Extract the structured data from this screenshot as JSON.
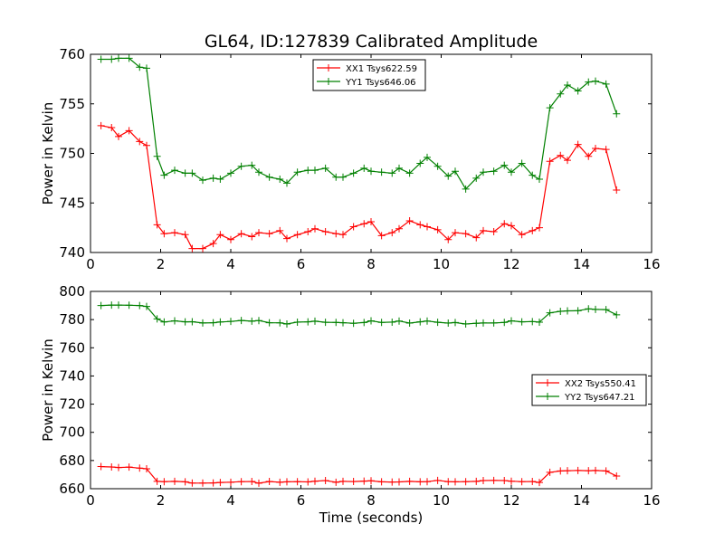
{
  "figure": {
    "title": "GL64, ID:127839 Calibrated Amplitude"
  },
  "chart_data": [
    {
      "type": "line",
      "title": "GL64, ID:127839 Calibrated Amplitude",
      "xlabel": "",
      "ylabel": "Power in Kelvin",
      "xlim": [
        0,
        16
      ],
      "ylim": [
        740,
        760
      ],
      "xticks": [
        "0",
        "2",
        "4",
        "6",
        "8",
        "10",
        "12",
        "14",
        "16"
      ],
      "yticks": [
        "740",
        "745",
        "750",
        "755",
        "760"
      ],
      "grid": false,
      "legend_position": "top-center",
      "x": [
        0.3,
        0.6,
        0.8,
        1.1,
        1.4,
        1.6,
        1.9,
        2.1,
        2.4,
        2.7,
        2.9,
        3.2,
        3.5,
        3.7,
        4.0,
        4.3,
        4.6,
        4.8,
        5.1,
        5.4,
        5.6,
        5.9,
        6.2,
        6.4,
        6.7,
        7.0,
        7.2,
        7.5,
        7.8,
        8.0,
        8.3,
        8.6,
        8.8,
        9.1,
        9.4,
        9.6,
        9.9,
        10.2,
        10.4,
        10.7,
        11.0,
        11.2,
        11.5,
        11.8,
        12.0,
        12.3,
        12.6,
        12.8,
        13.1,
        13.4,
        13.6,
        13.9,
        14.2,
        14.4,
        14.7,
        15.0
      ],
      "series": [
        {
          "name": "XX1 Tsys622.59",
          "color": "#ff0000",
          "values": [
            752.8,
            752.6,
            751.7,
            752.3,
            751.2,
            750.8,
            742.8,
            741.9,
            742.0,
            741.8,
            740.4,
            740.4,
            740.9,
            741.8,
            741.3,
            741.9,
            741.6,
            742.0,
            741.9,
            742.2,
            741.4,
            741.8,
            742.1,
            742.4,
            742.1,
            741.9,
            741.8,
            742.6,
            742.9,
            743.1,
            741.7,
            742.0,
            742.4,
            743.2,
            742.8,
            742.6,
            742.3,
            741.3,
            742.0,
            741.9,
            741.5,
            742.2,
            742.1,
            742.9,
            742.7,
            741.8,
            742.2,
            742.5,
            749.2,
            749.8,
            749.3,
            750.9,
            749.7,
            750.5,
            750.4,
            746.3
          ]
        },
        {
          "name": "YY1 Tsys646.06",
          "color": "#008000",
          "values": [
            759.5,
            759.5,
            759.6,
            759.6,
            758.7,
            758.6,
            749.7,
            747.8,
            748.3,
            748.0,
            748.0,
            747.3,
            747.5,
            747.4,
            748.0,
            748.7,
            748.8,
            748.1,
            747.6,
            747.4,
            747.0,
            748.1,
            748.3,
            748.3,
            748.5,
            747.6,
            747.6,
            748.0,
            748.5,
            748.2,
            748.1,
            748.0,
            748.5,
            748.0,
            749.0,
            749.6,
            748.7,
            747.7,
            748.2,
            746.4,
            747.5,
            748.1,
            748.2,
            748.8,
            748.1,
            749.0,
            747.8,
            747.4,
            754.6,
            756.0,
            756.9,
            756.3,
            757.2,
            757.3,
            757.0,
            754.0
          ]
        }
      ]
    },
    {
      "type": "line",
      "title": "",
      "xlabel": "Time (seconds)",
      "ylabel": "Power in Kelvin",
      "xlim": [
        0,
        16
      ],
      "ylim": [
        660,
        800
      ],
      "xticks": [
        "0",
        "2",
        "4",
        "6",
        "8",
        "10",
        "12",
        "14",
        "16"
      ],
      "yticks": [
        "660",
        "680",
        "700",
        "720",
        "740",
        "760",
        "780",
        "800"
      ],
      "grid": false,
      "legend_position": "center-right",
      "x": [
        0.3,
        0.6,
        0.8,
        1.1,
        1.4,
        1.6,
        1.9,
        2.1,
        2.4,
        2.7,
        2.9,
        3.2,
        3.5,
        3.7,
        4.0,
        4.3,
        4.6,
        4.8,
        5.1,
        5.4,
        5.6,
        5.9,
        6.2,
        6.4,
        6.7,
        7.0,
        7.2,
        7.5,
        7.8,
        8.0,
        8.3,
        8.6,
        8.8,
        9.1,
        9.4,
        9.6,
        9.9,
        10.2,
        10.4,
        10.7,
        11.0,
        11.2,
        11.5,
        11.8,
        12.0,
        12.3,
        12.6,
        12.8,
        13.1,
        13.4,
        13.6,
        13.9,
        14.2,
        14.4,
        14.7,
        15.0
      ],
      "series": [
        {
          "name": "XX2 Tsys550.41",
          "color": "#ff0000",
          "values": [
            675.7,
            675.4,
            675.0,
            675.3,
            674.6,
            674.1,
            665.2,
            665.0,
            665.2,
            664.9,
            664.0,
            664.0,
            664.1,
            664.4,
            664.6,
            665.0,
            665.1,
            663.9,
            665.1,
            664.6,
            664.9,
            665.0,
            664.8,
            665.3,
            665.8,
            664.6,
            665.2,
            665.1,
            665.4,
            665.6,
            664.9,
            664.7,
            664.8,
            665.2,
            664.9,
            665.0,
            665.9,
            665.0,
            664.9,
            665.0,
            665.2,
            665.8,
            665.9,
            665.8,
            665.3,
            665.0,
            665.1,
            664.4,
            671.6,
            672.6,
            672.8,
            672.9,
            672.8,
            672.9,
            672.6,
            669.0
          ]
        },
        {
          "name": "YY2 Tsys647.21",
          "color": "#008000",
          "values": [
            790.0,
            790.3,
            790.3,
            790.2,
            790.0,
            789.3,
            780.5,
            778.3,
            779.1,
            778.4,
            778.5,
            777.6,
            777.8,
            778.3,
            778.7,
            779.4,
            778.9,
            779.3,
            777.8,
            777.7,
            776.9,
            778.2,
            778.4,
            778.9,
            778.1,
            778.0,
            777.8,
            777.4,
            777.9,
            779.1,
            778.0,
            778.2,
            779.0,
            777.5,
            778.4,
            779.0,
            778.1,
            777.5,
            777.9,
            776.9,
            777.4,
            777.6,
            777.6,
            778.0,
            779.1,
            778.4,
            778.6,
            778.2,
            784.8,
            785.9,
            786.2,
            786.3,
            787.6,
            787.2,
            787.1,
            783.4
          ]
        }
      ]
    }
  ]
}
